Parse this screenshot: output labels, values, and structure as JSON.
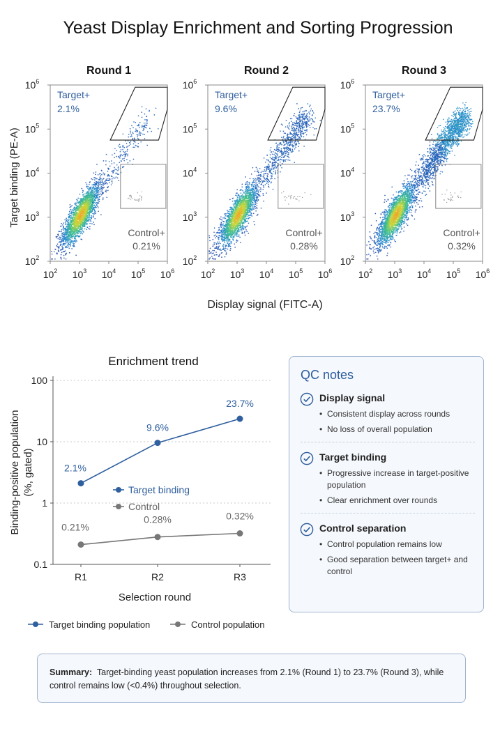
{
  "title": "Yeast Display Enrichment and Sorting Progression",
  "chart_data": [
    {
      "type": "scatter",
      "subtype": "flow-cytometry-density",
      "panels": [
        {
          "title": "Round 1",
          "target_gate": {
            "label": "Target+",
            "value": "2.1%"
          },
          "control_gate": {
            "label": "Control+",
            "value": "0.21%"
          }
        },
        {
          "title": "Round 2",
          "target_gate": {
            "label": "Target+",
            "value": "9.6%"
          },
          "control_gate": {
            "label": "Control+",
            "value": "0.28%"
          }
        },
        {
          "title": "Round 3",
          "target_gate": {
            "label": "Target+",
            "value": "23.7%"
          },
          "control_gate": {
            "label": "Control+",
            "value": "0.32%"
          }
        }
      ],
      "xlabel": "Display signal (FITC-A)",
      "ylabel": "Target binding (PE-A)",
      "x_scale": "log",
      "y_scale": "log",
      "xlim": [
        100,
        1000000
      ],
      "ylim": [
        100,
        1000000
      ],
      "x_ticks": [
        "10²",
        "10³",
        "10⁴",
        "10⁵",
        "10⁶"
      ],
      "y_ticks": [
        "10²",
        "10³",
        "10⁴",
        "10⁵",
        "10⁶"
      ],
      "target_gate_polygon_log10": [
        [
          4.9,
          5.95
        ],
        [
          6.0,
          5.95
        ],
        [
          6.0,
          5.45
        ],
        [
          5.7,
          4.75
        ],
        [
          4.05,
          4.75
        ]
      ],
      "control_gate_rect_log10": [
        [
          4.4,
          3.2
        ],
        [
          5.95,
          4.2
        ]
      ]
    },
    {
      "type": "line",
      "title": "Enrichment trend",
      "xlabel": "Selection round",
      "ylabel": [
        "Binding-positive population",
        "(%, gated)"
      ],
      "y_scale": "log",
      "ylim": [
        0.1,
        100
      ],
      "y_ticks": [
        "0.1",
        "1",
        "10",
        "100"
      ],
      "categories": [
        "R1",
        "R2",
        "R3"
      ],
      "series": [
        {
          "name": "Target binding",
          "values": [
            2.1,
            9.6,
            23.7
          ],
          "labels": [
            "2.1%",
            "9.6%",
            "23.7%"
          ],
          "color": "#2f5f9e"
        },
        {
          "name": "Control",
          "values": [
            0.21,
            0.28,
            0.32
          ],
          "labels": [
            "0.21%",
            "0.28%",
            "0.32%"
          ],
          "color": "#777777"
        }
      ],
      "outer_legend": [
        "Target binding population",
        "Control population"
      ]
    }
  ],
  "qc": {
    "title": "QC notes",
    "sections": [
      {
        "heading": "Display signal",
        "items": [
          "Consistent display across rounds",
          "No loss of overall population"
        ]
      },
      {
        "heading": "Target binding",
        "items": [
          "Progressive increase in target-positive population",
          "Clear enrichment over rounds"
        ]
      },
      {
        "heading": "Control separation",
        "items": [
          "Control population remains low",
          "Good separation between target+ and control"
        ]
      }
    ]
  },
  "summary": {
    "label": "Summary:",
    "text": "Target-binding yeast population increases from 2.1% (Round 1) to 23.7% (Round 3), while control remains low (<0.4%) throughout selection."
  },
  "colors": {
    "accent": "#2f5f9e",
    "control": "#777777",
    "card_border": "#9fb4cf",
    "card_bg": "#f5f8fc"
  }
}
